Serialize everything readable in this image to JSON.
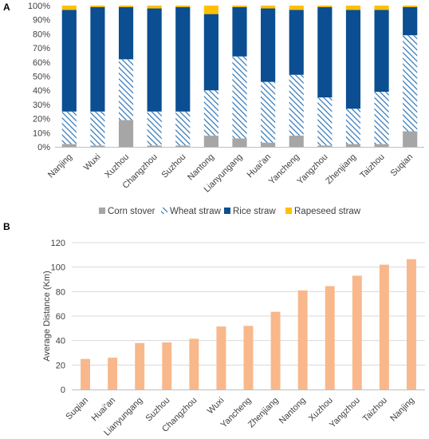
{
  "chart_data": [
    {
      "panel": "A",
      "type": "bar",
      "stacked": true,
      "percent": true,
      "categories": [
        "Nanjing",
        "Wuxi",
        "Xuzhou",
        "Changzhou",
        "Suzhou",
        "Nantong",
        "Lianyungang",
        "Huai'an",
        "Yancheng",
        "Yangzhou",
        "Zhenjiang",
        "Taizhou",
        "Suqian"
      ],
      "series": [
        {
          "name": "Corn stover",
          "color": "#a6a6a6",
          "pattern": "solid",
          "values": [
            2,
            1,
            19,
            1,
            1,
            8,
            6,
            3,
            8,
            1,
            2,
            2,
            11
          ]
        },
        {
          "name": "Wheat straw",
          "color": "#2e75b6",
          "pattern": "hatch",
          "values": [
            23,
            24,
            43,
            24,
            24,
            32,
            58,
            43,
            43,
            34,
            25,
            37,
            68
          ]
        },
        {
          "name": "Rice straw",
          "color": "#0b4e92",
          "pattern": "solid",
          "values": [
            72,
            74,
            37,
            73,
            74,
            54,
            35,
            52,
            46,
            64,
            70,
            58,
            20
          ]
        },
        {
          "name": "Rapeseed straw",
          "color": "#ffc000",
          "pattern": "solid",
          "values": [
            3,
            1,
            1,
            2,
            1,
            6,
            1,
            2,
            3,
            1,
            3,
            3,
            1
          ]
        }
      ],
      "y_ticks": [
        "0%",
        "10%",
        "20%",
        "30%",
        "40%",
        "50%",
        "60%",
        "70%",
        "80%",
        "90%",
        "100%"
      ],
      "ylim": [
        0,
        100
      ],
      "grid": false,
      "legend_position": "bottom"
    },
    {
      "panel": "B",
      "type": "bar",
      "categories": [
        "Suqian",
        "Huai'an",
        "Lianyungang",
        "Suzhou",
        "Changzhou",
        "Wuxi",
        "Yancheng",
        "Zhenjiang",
        "Nantong",
        "Xuzhou",
        "Yangzhou",
        "Taizhou",
        "Nanjing"
      ],
      "values": [
        25,
        26,
        38,
        38.5,
        41.5,
        51.5,
        52,
        63.5,
        81,
        84.5,
        93,
        102,
        106.5
      ],
      "color": "#f8b88b",
      "ylabel": "Average Distance (Km)",
      "y_ticks": [
        "0",
        "20",
        "40",
        "60",
        "80",
        "100",
        "120"
      ],
      "ylim": [
        0,
        120
      ],
      "grid": true
    }
  ]
}
